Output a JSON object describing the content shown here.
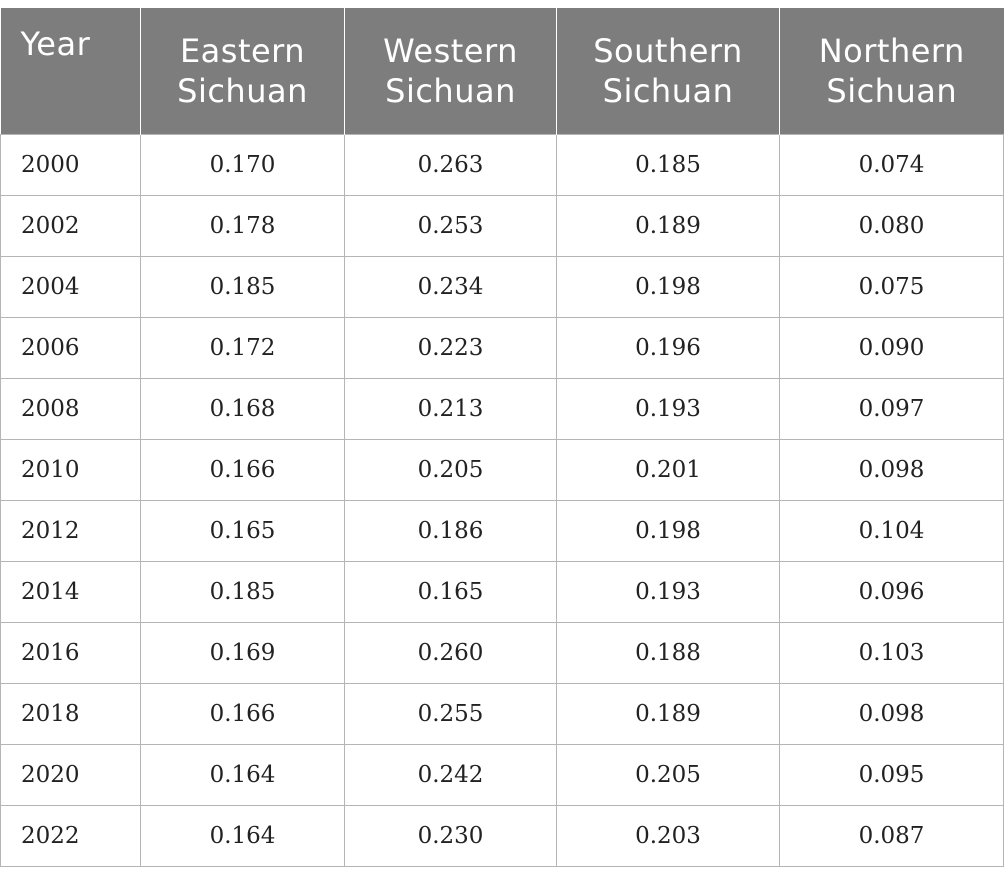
{
  "table": {
    "headers": [
      [
        "Year"
      ],
      [
        "Eastern",
        "Sichuan"
      ],
      [
        "Western",
        "Sichuan"
      ],
      [
        "Southern",
        "Sichuan"
      ],
      [
        "Northern",
        "Sichuan"
      ]
    ],
    "rows": [
      [
        "2000",
        "0.170",
        "0.263",
        "0.185",
        "0.074"
      ],
      [
        "2002",
        "0.178",
        "0.253",
        "0.189",
        "0.080"
      ],
      [
        "2004",
        "0.185",
        "0.234",
        "0.198",
        "0.075"
      ],
      [
        "2006",
        "0.172",
        "0.223",
        "0.196",
        "0.090"
      ],
      [
        "2008",
        "0.168",
        "0.213",
        "0.193",
        "0.097"
      ],
      [
        "2010",
        "0.166",
        "0.205",
        "0.201",
        "0.098"
      ],
      [
        "2012",
        "0.165",
        "0.186",
        "0.198",
        "0.104"
      ],
      [
        "2014",
        "0.185",
        "0.165",
        "0.193",
        "0.096"
      ],
      [
        "2016",
        "0.169",
        "0.260",
        "0.188",
        "0.103"
      ],
      [
        "2018",
        "0.166",
        "0.255",
        "0.189",
        "0.098"
      ],
      [
        "2020",
        "0.164",
        "0.242",
        "0.205",
        "0.095"
      ],
      [
        "2022",
        "0.164",
        "0.230",
        "0.203",
        "0.087"
      ]
    ]
  },
  "colors": {
    "header_background": "#7c7d7c",
    "header_text": "#ffffff",
    "grid_line": "#b5b5b5",
    "cell_text": "#222222"
  }
}
